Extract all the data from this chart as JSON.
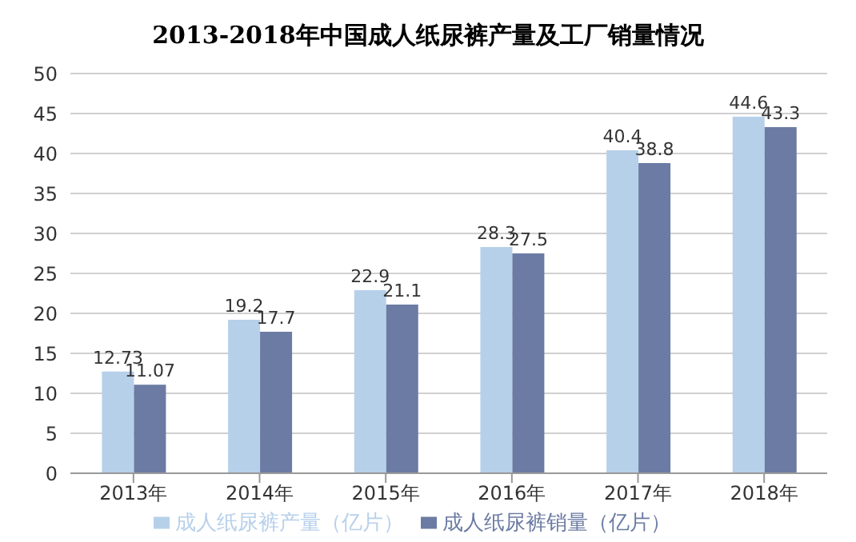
{
  "chart_data": {
    "type": "bar",
    "title": "2013-2018年中国成人纸尿裤产量及工厂销量情况",
    "categories": [
      "2013年",
      "2014年",
      "2015年",
      "2016年",
      "2017年",
      "2018年"
    ],
    "series": [
      {
        "name": "成人纸尿裤产量（亿片）",
        "color": "#b7d0ea",
        "values": [
          12.73,
          19.2,
          22.9,
          28.3,
          40.4,
          44.6
        ]
      },
      {
        "name": "成人纸尿裤销量（亿片）",
        "color": "#6b7ba3",
        "values": [
          11.07,
          17.7,
          21.1,
          27.5,
          38.8,
          43.3
        ]
      }
    ],
    "ylim": [
      0,
      50
    ],
    "yticks": [
      0,
      5,
      10,
      15,
      20,
      25,
      30,
      35,
      40,
      45,
      50
    ],
    "grid": "y",
    "legend": "bottom",
    "data_labels": true
  }
}
